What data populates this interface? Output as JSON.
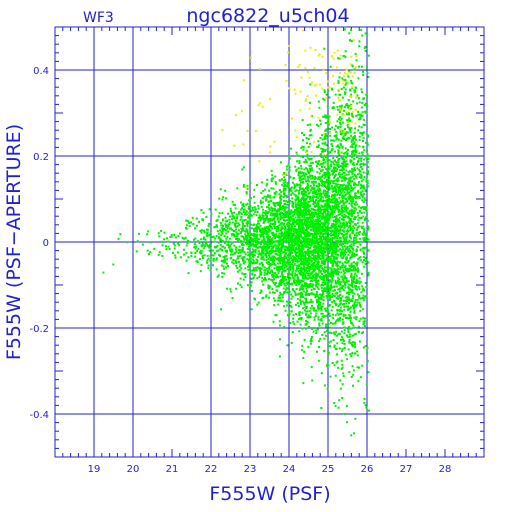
{
  "chart_data": {
    "type": "scatter",
    "title": "ngc6822_u5ch04",
    "chip_label": "WF3",
    "xlabel": "F555W (PSF)",
    "ylabel": "F555W (PSF−APERTURE)",
    "xlim": [
      18.0,
      29.0
    ],
    "ylim": [
      -0.5,
      0.5
    ],
    "x_ticks": [
      19,
      20,
      21,
      22,
      23,
      24,
      25,
      26,
      27,
      28
    ],
    "x_tick_labels": [
      "19",
      "20",
      "21",
      "22",
      "23",
      "24",
      "25",
      "26",
      "27",
      "28"
    ],
    "x_gridlines": [
      19,
      20,
      22,
      23,
      24,
      25,
      26
    ],
    "y_ticks": [
      0.4,
      0.2,
      0,
      -0.2,
      -0.4
    ],
    "y_tick_labels": [
      "0.4",
      "0.2",
      "0",
      "-0.2",
      "-0.4"
    ],
    "grid": true,
    "colors": {
      "axis": "#2222cc",
      "main_points": "#00ee00",
      "flagged_points": "#eeee00"
    },
    "series": [
      {
        "color_key": "main_points",
        "density_profile": [
          {
            "mag": 19.0,
            "center": -0.04,
            "spread": 0.03,
            "count": 2
          },
          {
            "mag": 20.0,
            "center": 0.01,
            "spread": 0.02,
            "count": 6
          },
          {
            "mag": 20.5,
            "center": 0.0,
            "spread": 0.02,
            "count": 14
          },
          {
            "mag": 21.0,
            "center": 0.0,
            "spread": 0.02,
            "count": 28
          },
          {
            "mag": 21.5,
            "center": 0.0,
            "spread": 0.03,
            "count": 55
          },
          {
            "mag": 22.0,
            "center": 0.0,
            "spread": 0.035,
            "count": 110
          },
          {
            "mag": 22.5,
            "center": 0.0,
            "spread": 0.045,
            "count": 190
          },
          {
            "mag": 23.0,
            "center": 0.0,
            "spread": 0.055,
            "count": 320
          },
          {
            "mag": 23.5,
            "center": 0.0,
            "spread": 0.065,
            "count": 520
          },
          {
            "mag": 24.0,
            "center": 0.0,
            "spread": 0.08,
            "count": 800
          },
          {
            "mag": 24.5,
            "center": 0.01,
            "spread": 0.1,
            "count": 1150
          },
          {
            "mag": 25.0,
            "center": 0.02,
            "spread": 0.13,
            "count": 1200
          },
          {
            "mag": 25.5,
            "center": 0.05,
            "spread": 0.17,
            "count": 950
          },
          {
            "mag": 25.9,
            "center": 0.08,
            "spread": 0.19,
            "count": 500
          }
        ]
      },
      {
        "color_key": "flagged_points",
        "density_profile": [
          {
            "mag": 22.5,
            "center": 0.28,
            "spread": 0.1,
            "count": 8
          },
          {
            "mag": 23.5,
            "center": 0.3,
            "spread": 0.1,
            "count": 18
          },
          {
            "mag": 24.5,
            "center": 0.35,
            "spread": 0.09,
            "count": 45
          },
          {
            "mag": 25.5,
            "center": 0.38,
            "spread": 0.08,
            "count": 60
          }
        ]
      }
    ]
  }
}
